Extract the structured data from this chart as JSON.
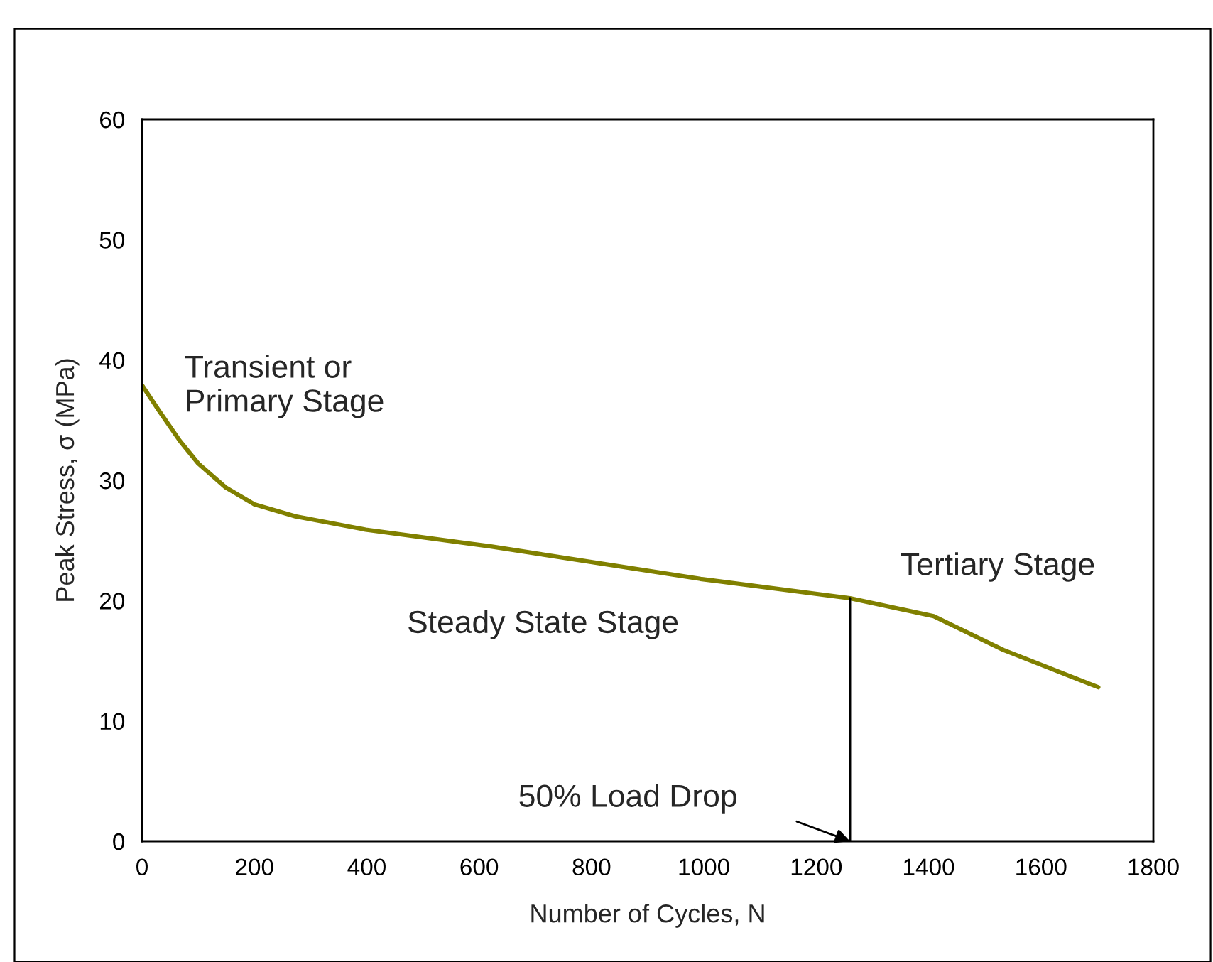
{
  "chart_data": {
    "type": "line",
    "xlabel": "Number of Cycles, N",
    "ylabel": "Peak Stress, σ (MPa)",
    "xlim": [
      0,
      1800
    ],
    "xticks": [
      0,
      200,
      400,
      600,
      800,
      1000,
      1200,
      1400,
      1600,
      1800
    ],
    "ylim": [
      0,
      60
    ],
    "yticks": [
      0,
      10,
      20,
      30,
      40,
      50,
      60
    ],
    "grid": false,
    "legend": false,
    "marker": "none",
    "line_style": "solid",
    "series": [
      {
        "color": "#808000",
        "x": [
          0,
          30,
          67,
          100,
          149,
          200,
          273,
          398,
          621,
          994,
          1260,
          1409,
          1533,
          1702
        ],
        "values": [
          37.9,
          35.8,
          33.3,
          31.4,
          29.4,
          28.0,
          27.0,
          25.9,
          24.5,
          21.8,
          20.2,
          18.7,
          15.9,
          12.8
        ]
      },
      {
        "color": "#000000",
        "x": [
          1260,
          1260
        ],
        "values": [
          0,
          20.2
        ]
      }
    ],
    "annotations": [
      "Transient or\nPrimary Stage",
      "Steady State Stage",
      "Tertiary Stage",
      "50% Load Drop"
    ]
  }
}
